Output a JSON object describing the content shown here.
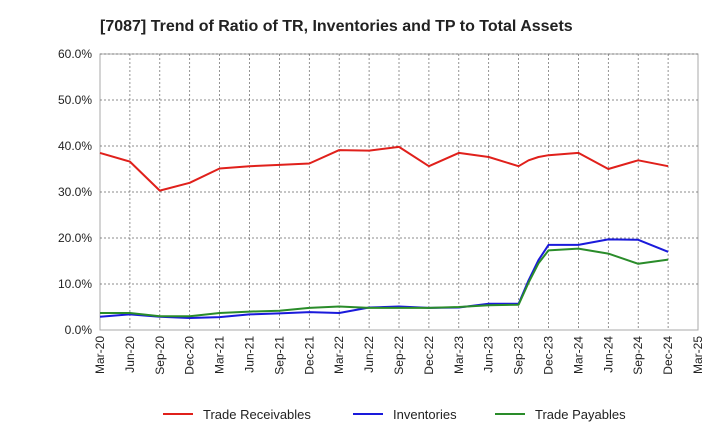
{
  "chart_data": {
    "type": "line",
    "title": "[7087]  Trend of Ratio of TR, Inventories and TP to Total Assets",
    "xlabel": "",
    "ylabel": "",
    "ylim": [
      0,
      60
    ],
    "y_ticks": [
      "0.0%",
      "10.0%",
      "20.0%",
      "30.0%",
      "40.0%",
      "50.0%",
      "60.0%"
    ],
    "x_ticks": [
      "Mar-20",
      "Jun-20",
      "Sep-20",
      "Dec-20",
      "Mar-21",
      "Jun-21",
      "Sep-21",
      "Dec-21",
      "Mar-22",
      "Jun-22",
      "Sep-22",
      "Dec-22",
      "Mar-23",
      "Jun-23",
      "Sep-23",
      "Dec-23",
      "Mar-24",
      "Jun-24",
      "Sep-24",
      "Dec-24",
      "Mar-25"
    ],
    "grid": true,
    "legend_position": "bottom",
    "x": [
      "Mar-20",
      "Jun-20",
      "Sep-20",
      "Dec-20",
      "Mar-21",
      "Jun-21",
      "Sep-21",
      "Dec-21",
      "Mar-22",
      "Jun-22",
      "Sep-22",
      "Dec-22",
      "Mar-23",
      "Jun-23",
      "Sep-23",
      "Oct-23",
      "Nov-23",
      "Dec-23",
      "Mar-24",
      "Jun-24",
      "Sep-24",
      "Dec-24"
    ],
    "series": [
      {
        "name": "Trade Receivables",
        "color": "#e0201b",
        "values": [
          38.5,
          36.6,
          30.3,
          32.0,
          35.1,
          35.6,
          35.9,
          36.2,
          39.1,
          39.0,
          39.8,
          35.6,
          38.5,
          37.6,
          35.6,
          36.9,
          37.6,
          38.0,
          38.5,
          35.0,
          36.9,
          35.6
        ]
      },
      {
        "name": "Inventories",
        "color": "#1a1adb",
        "values": [
          2.9,
          3.4,
          2.9,
          2.6,
          2.8,
          3.4,
          3.6,
          3.9,
          3.7,
          4.9,
          5.1,
          4.8,
          4.9,
          5.7,
          5.7,
          10.8,
          15.2,
          18.5,
          18.5,
          19.7,
          19.6,
          17.0
        ]
      },
      {
        "name": "Trade Payables",
        "color": "#2a8c2a",
        "values": [
          3.7,
          3.7,
          3.0,
          3.0,
          3.7,
          4.0,
          4.2,
          4.8,
          5.1,
          4.8,
          4.8,
          4.8,
          5.0,
          5.4,
          5.5,
          10.3,
          14.5,
          17.3,
          17.7,
          16.6,
          14.4,
          15.3
        ]
      }
    ]
  }
}
